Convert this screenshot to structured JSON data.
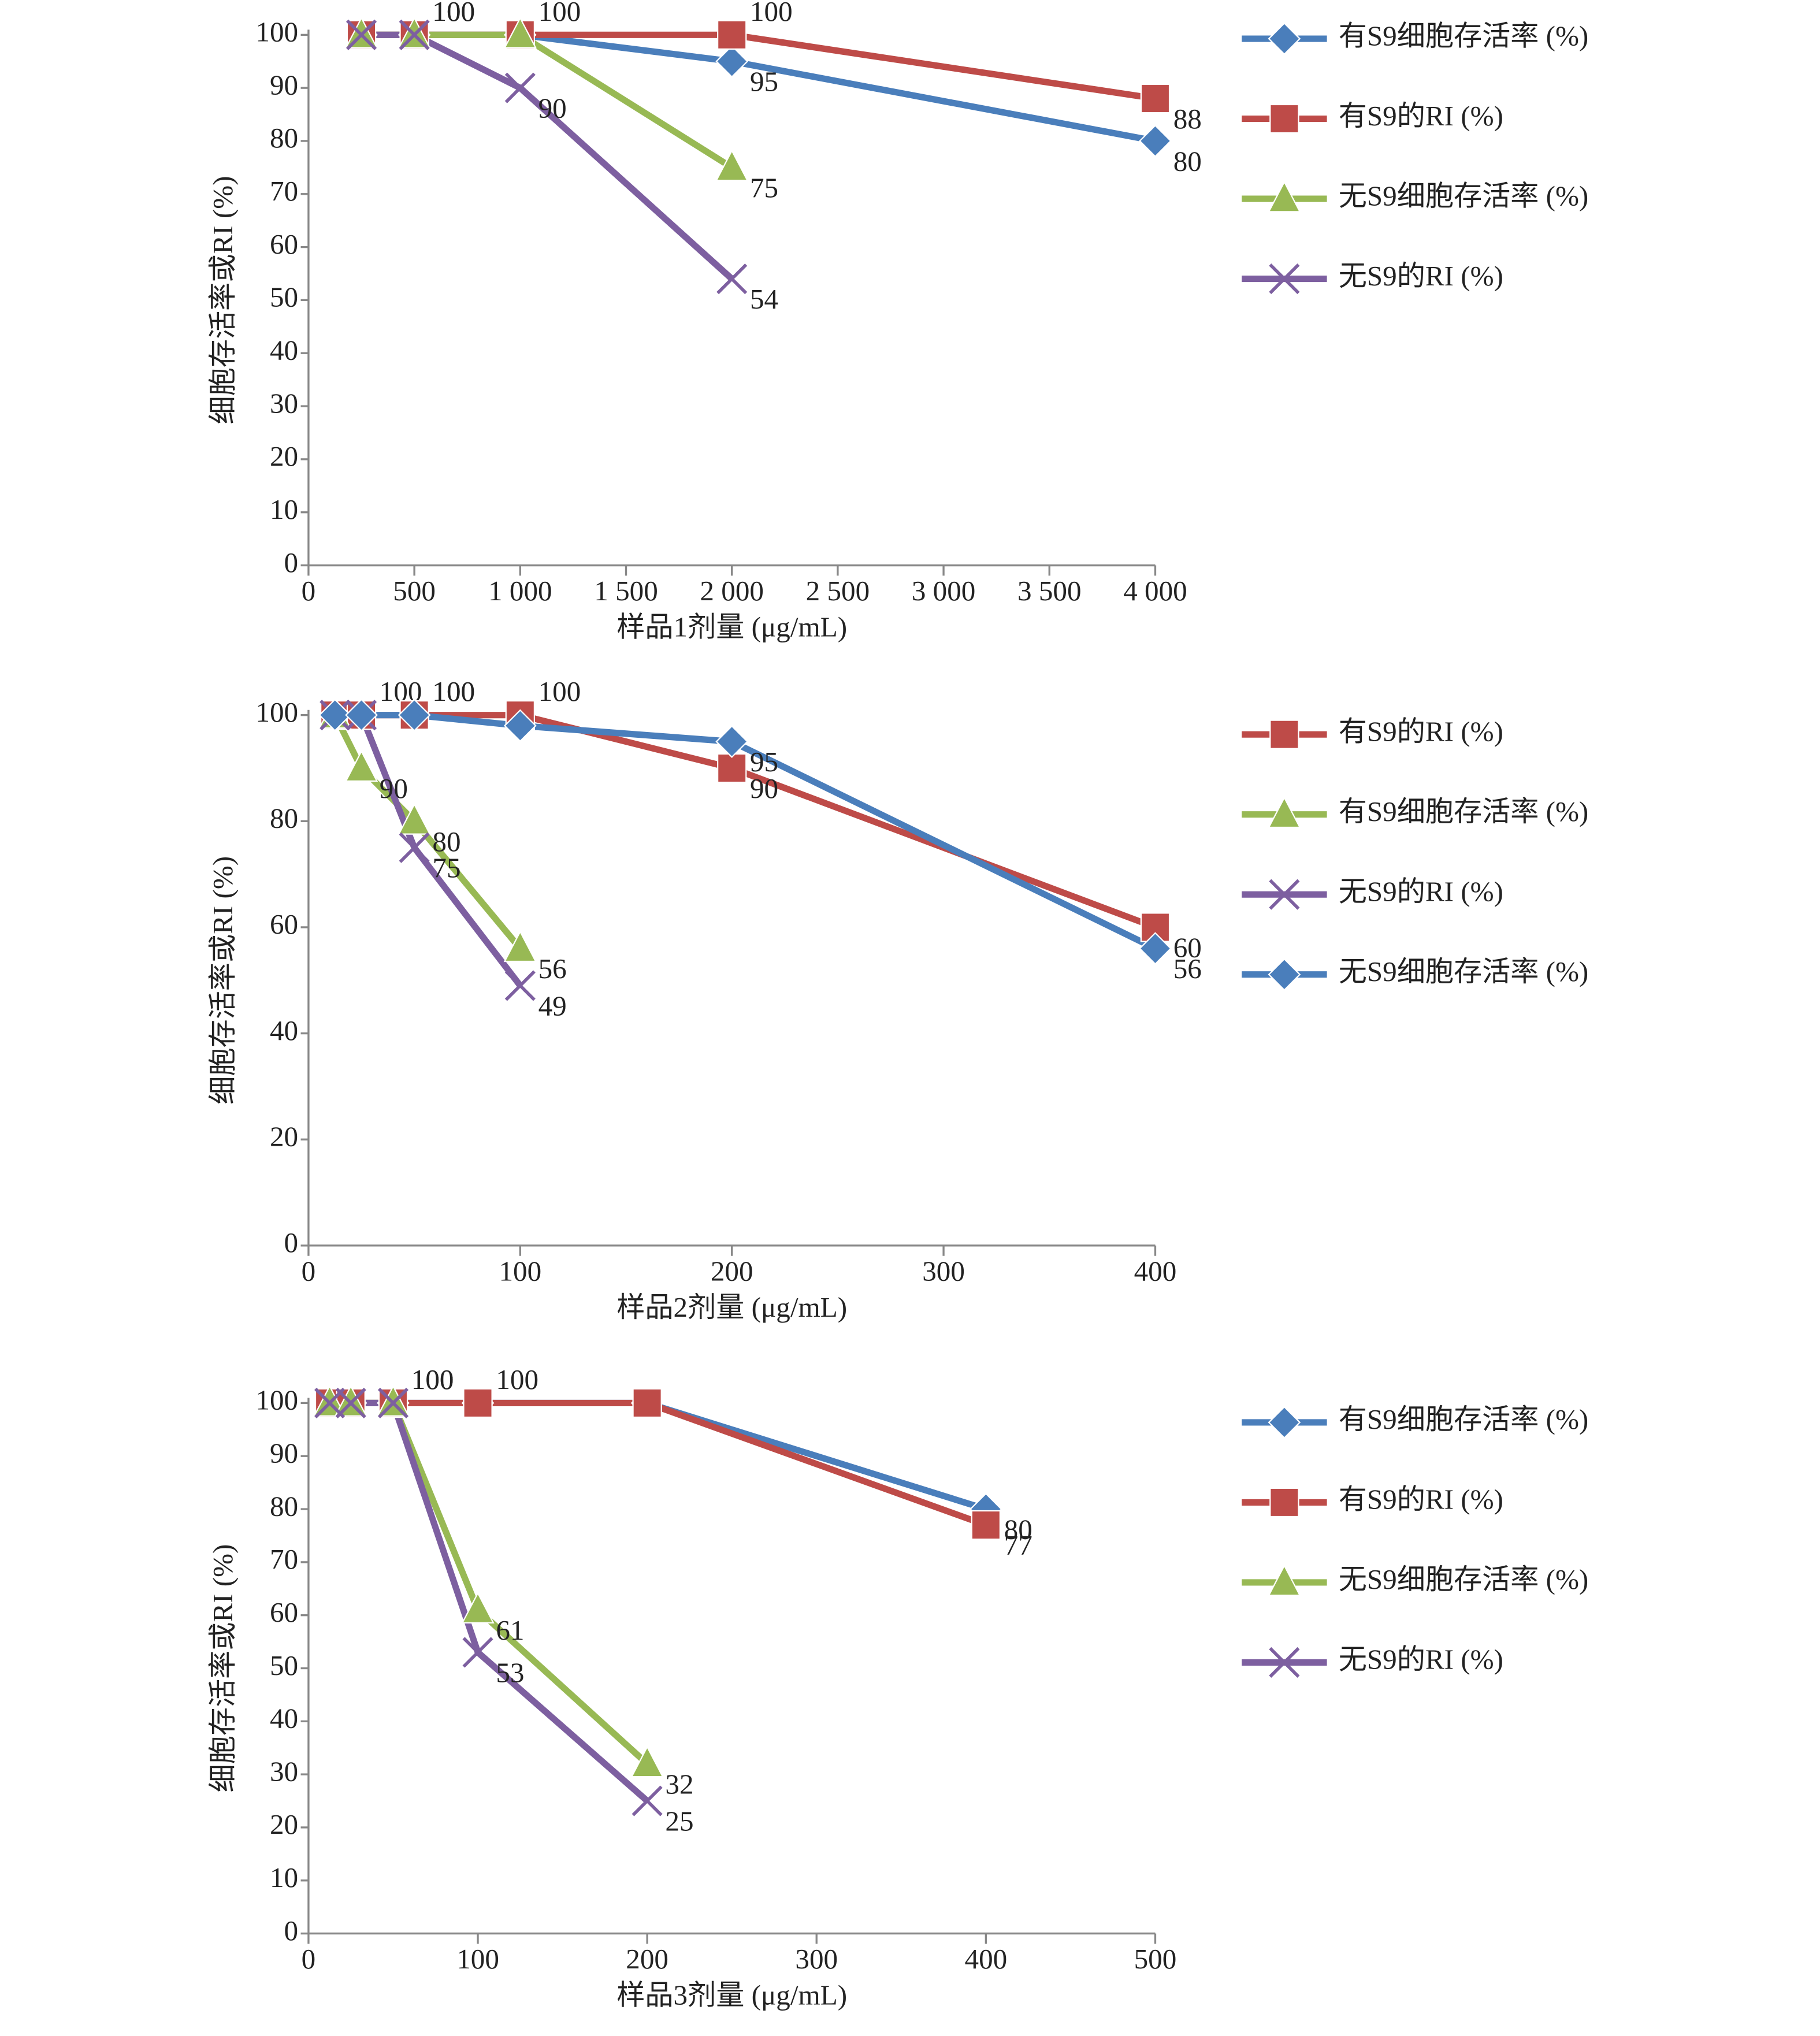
{
  "chart_data": [
    {
      "type": "line",
      "xlabel": "样品1剂量 (μg/mL)",
      "ylabel": "细胞存活率或RI (%)",
      "xlim": [
        0,
        4000
      ],
      "ylim": [
        0,
        100
      ],
      "xticks": [
        0,
        500,
        {
          "value": 1000,
          "label": "1 000"
        },
        {
          "value": 1500,
          "label": "1 500"
        },
        {
          "value": 2000,
          "label": "2 000"
        },
        {
          "value": 2500,
          "label": "2 500"
        },
        {
          "value": 3000,
          "label": "3 000"
        },
        {
          "value": 3500,
          "label": "3 500"
        },
        {
          "value": 4000,
          "label": "4 000"
        }
      ],
      "yticks": [
        0,
        10,
        20,
        30,
        40,
        50,
        60,
        70,
        80,
        90,
        100
      ],
      "series": [
        {
          "name": "有S9细胞存活率 (%)",
          "color": "#4a7ebb",
          "marker": "diamond",
          "x": [
            250,
            500,
            1000,
            2000,
            4000
          ],
          "values": [
            100,
            100,
            100,
            95,
            80
          ],
          "value_labels": [
            null,
            null,
            null,
            "95",
            "80"
          ]
        },
        {
          "name": "有S9的RI (%)",
          "color": "#be4b48",
          "marker": "square",
          "x": [
            250,
            500,
            1000,
            2000,
            4000
          ],
          "values": [
            100,
            100,
            100,
            100,
            88
          ],
          "value_labels": [
            null,
            "100",
            "100",
            "100",
            "88"
          ]
        },
        {
          "name": "无S9细胞存活率 (%)",
          "color": "#98b954",
          "marker": "triangle",
          "x": [
            250,
            500,
            1000,
            2000
          ],
          "values": [
            100,
            100,
            100,
            75
          ],
          "value_labels": [
            null,
            null,
            null,
            "75"
          ]
        },
        {
          "name": "无S9的RI (%)",
          "color": "#7d5fa0",
          "marker": "x",
          "x": [
            250,
            500,
            1000,
            2000
          ],
          "values": [
            100,
            100,
            90,
            54
          ],
          "value_labels": [
            null,
            "100",
            "90",
            "54"
          ]
        }
      ]
    },
    {
      "type": "line",
      "xlabel": "样品2剂量 (μg/mL)",
      "ylabel": "细胞存活率或RI (%)",
      "xlim": [
        0,
        400
      ],
      "ylim": [
        0,
        100
      ],
      "xticks": [
        0,
        100,
        200,
        300,
        400
      ],
      "yticks": [
        0,
        20,
        40,
        60,
        80,
        100
      ],
      "series": [
        {
          "name": "有S9的RI (%)",
          "color": "#be4b48",
          "marker": "square",
          "x": [
            12.5,
            25,
            50,
            100,
            200,
            400
          ],
          "values": [
            100,
            100,
            100,
            100,
            90,
            60
          ],
          "value_labels": [
            null,
            "100",
            "100",
            "100",
            "90",
            "60"
          ]
        },
        {
          "name": "有S9细胞存活率 (%)",
          "color": "#98b954",
          "marker": "triangle",
          "x": [
            12.5,
            25,
            50,
            100
          ],
          "values": [
            100,
            90,
            80,
            56
          ],
          "value_labels": [
            null,
            "90",
            "80",
            "56"
          ]
        },
        {
          "name": "无S9的RI (%)",
          "color": "#7d5fa0",
          "marker": "x",
          "x": [
            12.5,
            25,
            50,
            100
          ],
          "values": [
            100,
            100,
            75,
            49
          ],
          "value_labels": [
            null,
            null,
            "75",
            "49"
          ]
        },
        {
          "name": "无S9细胞存活率 (%)",
          "color": "#4a7ebb",
          "marker": "diamond",
          "x": [
            12.5,
            25,
            50,
            100,
            200,
            400
          ],
          "values": [
            100,
            100,
            100,
            98,
            95,
            56
          ],
          "value_labels": [
            null,
            null,
            "100",
            null,
            "95",
            "56"
          ]
        }
      ]
    },
    {
      "type": "line",
      "xlabel": "样品3剂量 (μg/mL)",
      "ylabel": "细胞存活率或RI (%)",
      "xlim": [
        0,
        500
      ],
      "ylim": [
        0,
        100
      ],
      "xticks": [
        0,
        100,
        200,
        300,
        400,
        500
      ],
      "yticks": [
        0,
        10,
        20,
        30,
        40,
        50,
        60,
        70,
        80,
        90,
        100
      ],
      "series": [
        {
          "name": "有S9细胞存活率 (%)",
          "color": "#4a7ebb",
          "marker": "diamond",
          "x": [
            12.5,
            25,
            50,
            100,
            200,
            400
          ],
          "values": [
            100,
            100,
            100,
            100,
            100,
            80
          ],
          "value_labels": [
            null,
            null,
            null,
            null,
            null,
            "80"
          ]
        },
        {
          "name": "有S9的RI (%)",
          "color": "#be4b48",
          "marker": "square",
          "x": [
            12.5,
            25,
            50,
            100,
            200,
            400
          ],
          "values": [
            100,
            100,
            100,
            100,
            100,
            77
          ],
          "value_labels": [
            null,
            null,
            "100",
            "100",
            null,
            "77"
          ]
        },
        {
          "name": "无S9细胞存活率 (%)",
          "color": "#98b954",
          "marker": "triangle",
          "x": [
            12.5,
            25,
            50,
            100,
            200
          ],
          "values": [
            100,
            100,
            100,
            61,
            32
          ],
          "value_labels": [
            null,
            null,
            "100",
            "61",
            "32"
          ]
        },
        {
          "name": "无S9的RI (%)",
          "color": "#7d5fa0",
          "marker": "x",
          "x": [
            12.5,
            25,
            50,
            100,
            200
          ],
          "values": [
            100,
            100,
            100,
            53,
            25
          ],
          "value_labels": [
            null,
            null,
            null,
            "53",
            "25"
          ]
        }
      ]
    }
  ]
}
